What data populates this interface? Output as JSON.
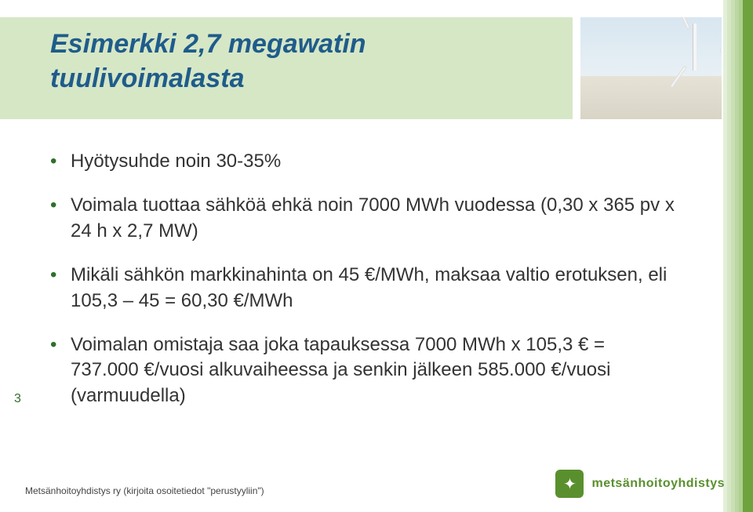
{
  "colors": {
    "stripe_shades": [
      "#e3efd8",
      "#d6e7c6",
      "#c9dfb4",
      "#bcd7a2",
      "#afcf90",
      "#6ea23d"
    ],
    "stripe_widths": [
      5,
      5,
      5,
      5,
      5,
      13
    ],
    "accent_bar": "#d6e7c6",
    "title_color": "#1f5c8b",
    "bullet_color": "#2f6f2a",
    "body_text": "#333333",
    "pagenum_color": "#2f6f2a",
    "logo_bg": "#5a8f2e",
    "logo_text": "#5a8f2e"
  },
  "title_line1": "Esimerkki 2,7 megawatin",
  "title_line2": "tuulivoimalasta",
  "bullets": [
    "Hyötysuhde noin 30-35%",
    "Voimala tuottaa sähköä ehkä noin 7000 MWh vuodessa (0,30 x 365 pv x 24 h x 2,7 MW)",
    "Mikäli sähkön markkinahinta on 45 €/MWh, maksaa valtio erotuksen, eli 105,3 – 45 = 60,30 €/MWh",
    "Voimalan omistaja saa joka tapauksessa 7000 MWh x 105,3 € = 737.000 €/vuosi alkuvaiheessa ja senkin jälkeen 585.000 €/vuosi (varmuudella)"
  ],
  "page_number": "3",
  "footer_text": "Metsänhoitoyhdistys ry (kirjoita osoitetiedot \"perustyyliin\")",
  "logo_symbol": "✦",
  "logo_label": "metsänhoitoyhdistys"
}
